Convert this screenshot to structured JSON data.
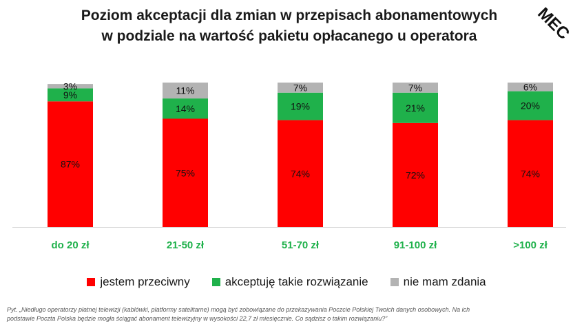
{
  "title_line1": "Poziom akceptacji dla zmian w przepisach abonamentowych",
  "title_line2": "w podziale na wartość pakietu opłacanego u operatora",
  "logo_text": "MEC",
  "colors": {
    "red": "#ff0000",
    "green": "#1fb14b",
    "grey": "#b3b3b3",
    "xlabel": "#1fb14b"
  },
  "chart_data": {
    "type": "bar",
    "stacked": true,
    "title": "Poziom akceptacji dla zmian w przepisach abonamentowych w podziale na wartość pakietu opłacanego u operatora",
    "xlabel": "",
    "ylabel": "",
    "ylim": [
      0,
      100
    ],
    "categories": [
      "do 20 zł",
      "21-50 zł",
      "51-70 zł",
      "91-100 zł",
      ">100 zł"
    ],
    "series": [
      {
        "name": "jestem przeciwny",
        "values": [
          87,
          75,
          74,
          72,
          74
        ],
        "labels": [
          "87%",
          "75%",
          "74%",
          "72%",
          "74%"
        ]
      },
      {
        "name": "akceptuję takie rozwiązanie",
        "values": [
          9,
          14,
          19,
          21,
          20
        ],
        "labels": [
          "9%",
          "14%",
          "19%",
          "21%",
          "20%"
        ]
      },
      {
        "name": "nie mam zdania",
        "values": [
          3,
          11,
          7,
          7,
          6
        ],
        "labels": [
          "3%",
          "11%",
          "7%",
          "7%",
          "6%"
        ]
      }
    ],
    "legend": "bottom"
  },
  "legend": [
    {
      "label": "jestem przeciwny",
      "color": "#ff0000"
    },
    {
      "label": "akceptuję takie rozwiązanie",
      "color": "#1fb14b"
    },
    {
      "label": "nie mam zdania",
      "color": "#b3b3b3"
    }
  ],
  "footnote_line1": "Pyt. „Niedługo operatorzy płatnej telewizji (kablówki, platformy satelitarne) mogą być zobowiązane do przekazywania Poczcie Polskiej Twoich danych osobowych. Na ich",
  "footnote_line2": "podstawie Poczta Polska będzie mogła ściągać abonament telewizyjny w wysokości 22,7 zł miesięcznie. Co sądzisz o takim rozwiązaniu?”"
}
